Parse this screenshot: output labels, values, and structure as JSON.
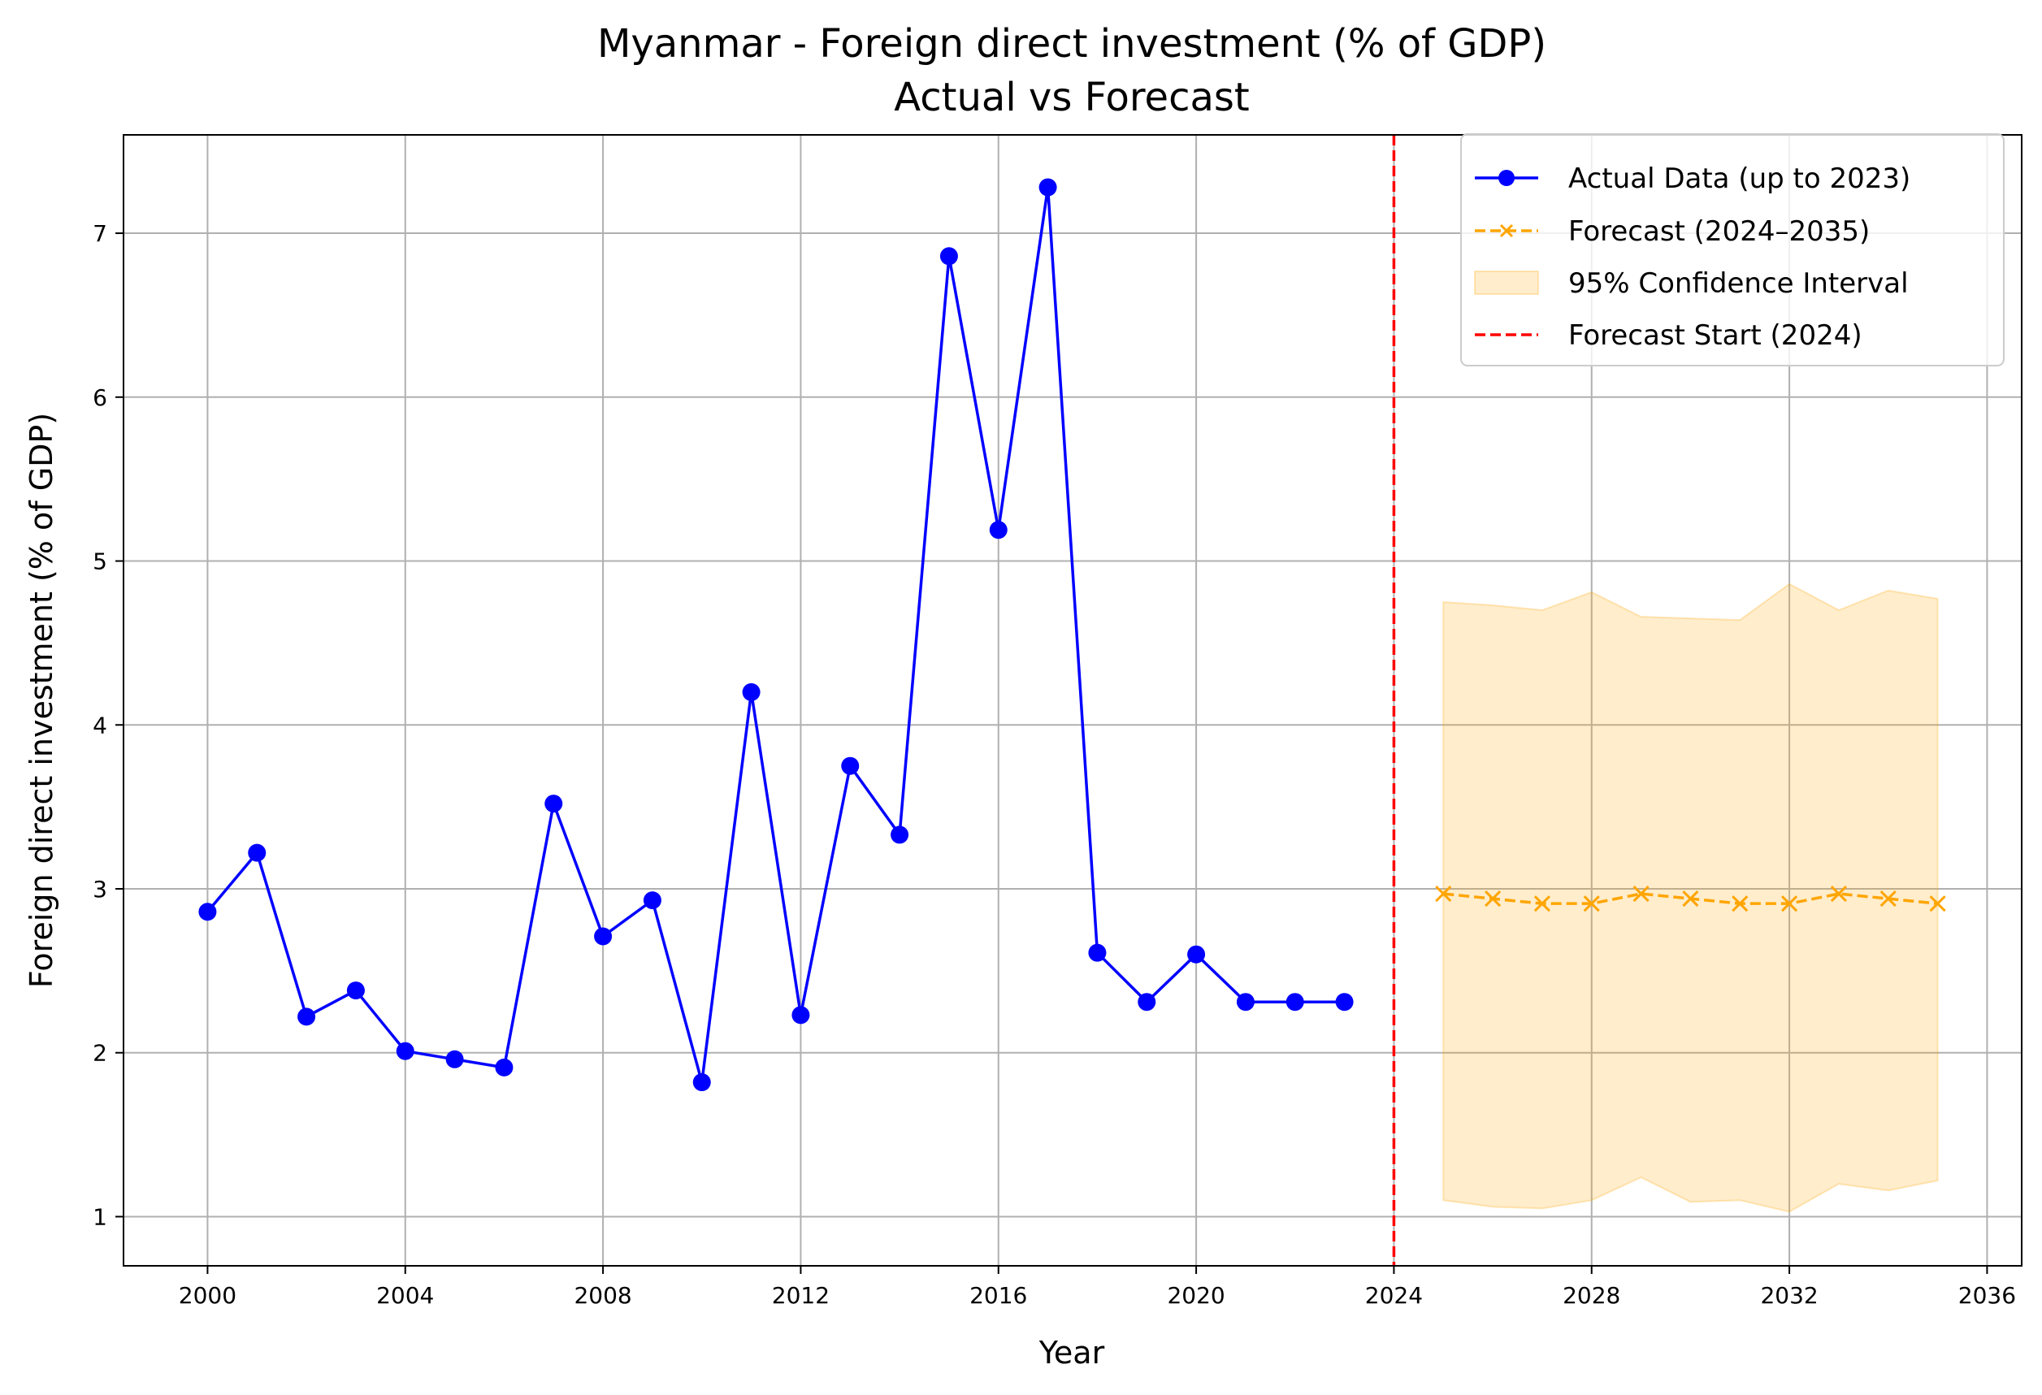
{
  "chart_data": {
    "type": "line",
    "title": "Myanmar - Foreign direct investment (% of GDP)",
    "subtitle": "Actual vs Forecast",
    "xlabel": "Year",
    "ylabel": "Foreign direct investment (% of GDP)",
    "xlim": [
      1998.3,
      2036.7
    ],
    "ylim": [
      0.7,
      7.6
    ],
    "x_ticks": [
      2000,
      2004,
      2008,
      2012,
      2016,
      2020,
      2024,
      2028,
      2032,
      2036
    ],
    "y_ticks": [
      1,
      2,
      3,
      4,
      5,
      6,
      7
    ],
    "grid": true,
    "legend_position": "top-right",
    "colors": {
      "actual": "#0000ff",
      "forecast": "#ffa500",
      "ci_fill": "#ffa500",
      "forecast_start": "#ff0000",
      "grid": "#b0b0b0"
    },
    "series": [
      {
        "name": "Actual Data (up to 2023)",
        "x": [
          2000,
          2001,
          2002,
          2003,
          2004,
          2005,
          2006,
          2007,
          2008,
          2009,
          2010,
          2011,
          2012,
          2013,
          2014,
          2015,
          2016,
          2017,
          2018,
          2019,
          2020,
          2021,
          2022,
          2023
        ],
        "y": [
          2.86,
          3.22,
          2.22,
          2.38,
          2.01,
          1.96,
          1.91,
          3.52,
          2.71,
          2.93,
          1.82,
          4.2,
          2.23,
          3.75,
          3.33,
          6.86,
          5.19,
          7.28,
          2.61,
          2.31,
          2.6,
          2.31,
          2.31,
          2.31
        ]
      },
      {
        "name": "Forecast (2024–2035)",
        "x": [
          2025,
          2026,
          2027,
          2028,
          2029,
          2030,
          2031,
          2032,
          2033,
          2034,
          2035
        ],
        "y": [
          2.97,
          2.94,
          2.91,
          2.91,
          2.97,
          2.94,
          2.91,
          2.91,
          2.97,
          2.94,
          2.91
        ]
      }
    ],
    "confidence_interval": {
      "name": "95% Confidence Interval",
      "x": [
        2025,
        2026,
        2027,
        2028,
        2029,
        2030,
        2031,
        2032,
        2033,
        2034,
        2035
      ],
      "lower": [
        1.1,
        1.06,
        1.05,
        1.1,
        1.24,
        1.09,
        1.1,
        1.03,
        1.2,
        1.16,
        1.22
      ],
      "upper": [
        4.75,
        4.73,
        4.7,
        4.81,
        4.66,
        4.65,
        4.64,
        4.86,
        4.7,
        4.82,
        4.77
      ]
    },
    "forecast_start": {
      "name": "Forecast Start (2024)",
      "x": 2024
    }
  }
}
